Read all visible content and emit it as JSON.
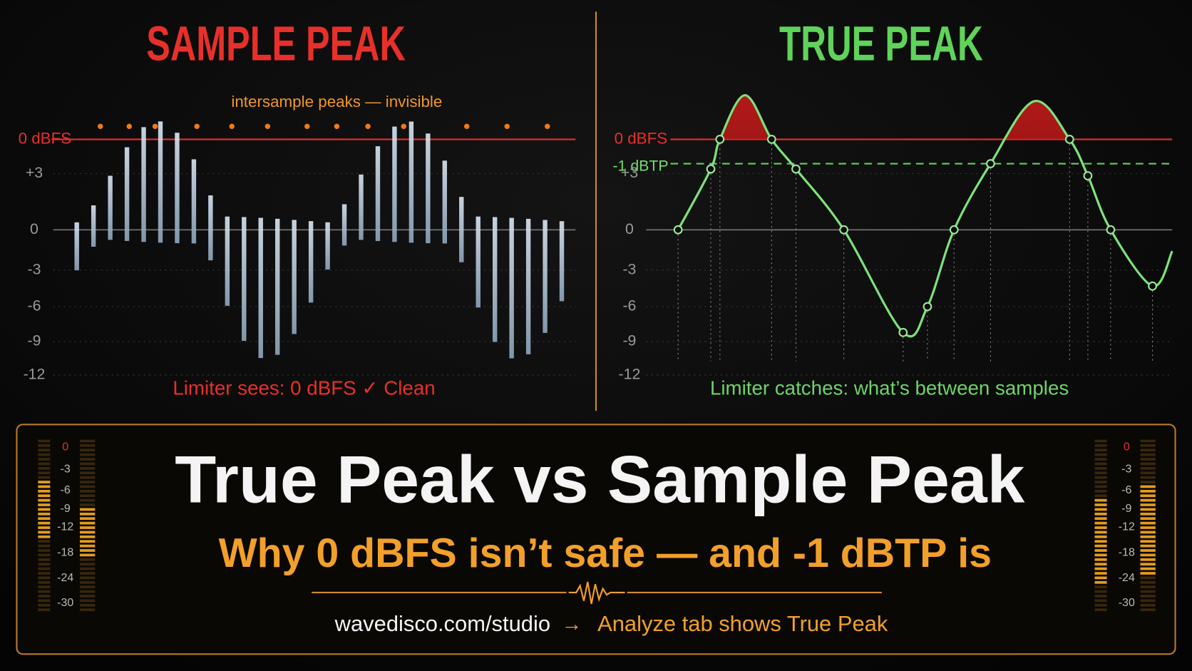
{
  "left": {
    "title": "SAMPLE PEAK",
    "annotation": "intersample peaks — invisible",
    "ref_label": "0 dBFS",
    "axis_labels": [
      "+3",
      "0",
      "-3",
      "-6",
      "-9",
      "-12"
    ],
    "caption": "Limiter sees: 0 dBFS ✓ Clean"
  },
  "right": {
    "title": "TRUE PEAK",
    "ref_label": "0 dBFS",
    "limit_label": "-1 dBTP",
    "axis_labels": [
      "+3",
      "0",
      "-3",
      "-6",
      "-9",
      "-12"
    ],
    "caption": "Limiter catches: what’s between samples"
  },
  "banner": {
    "title": "True Peak vs Sample Peak",
    "subtitle": "Why 0 dBFS isn’t safe — and -1 dBTP is",
    "url": "wavedisco.com/studio",
    "arrow": "→",
    "cta": "Analyze tab shows True Peak",
    "meter_labels": [
      "0",
      "-3",
      "-6",
      "-9",
      "-12",
      "-18",
      "-24",
      "-30"
    ]
  }
}
